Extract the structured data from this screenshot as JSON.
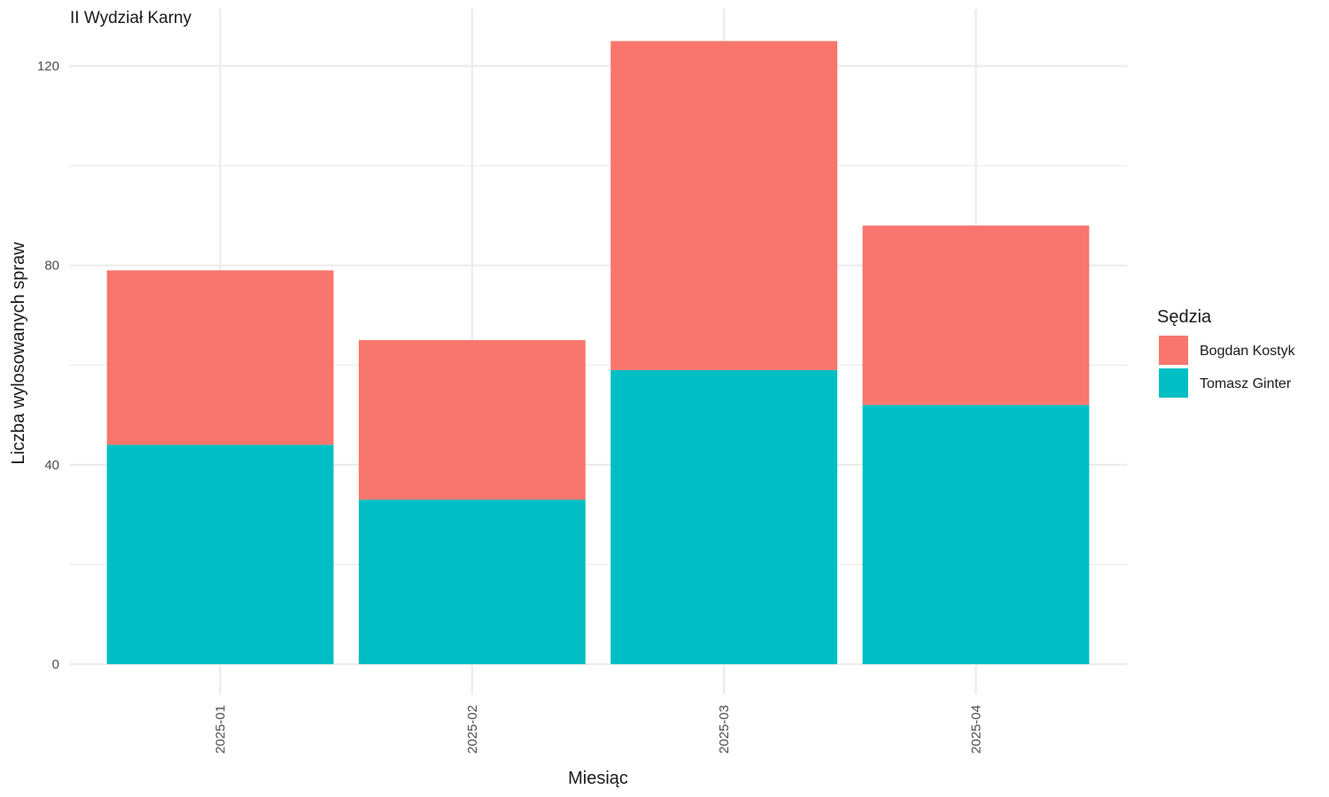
{
  "chart_data": {
    "type": "bar",
    "stacked": true,
    "title": "II Wydział Karny",
    "xlabel": "Miesiąc",
    "ylabel": "Liczba wylosowanych spraw",
    "categories": [
      "2025-01",
      "2025-02",
      "2025-03",
      "2025-04"
    ],
    "series": [
      {
        "name": "Tomasz Ginter",
        "color": "#00BFC4",
        "values": [
          44,
          33,
          59,
          52
        ]
      },
      {
        "name": "Bogdan Kostyk",
        "color": "#F8766D",
        "values": [
          35,
          32,
          66,
          36
        ]
      }
    ],
    "ylim": [
      0,
      130
    ],
    "yticks": [
      0,
      40,
      80,
      120
    ],
    "grid": true,
    "legend": {
      "title": "Sędzia",
      "position": "right",
      "order": [
        "Bogdan Kostyk",
        "Tomasz Ginter"
      ]
    }
  }
}
